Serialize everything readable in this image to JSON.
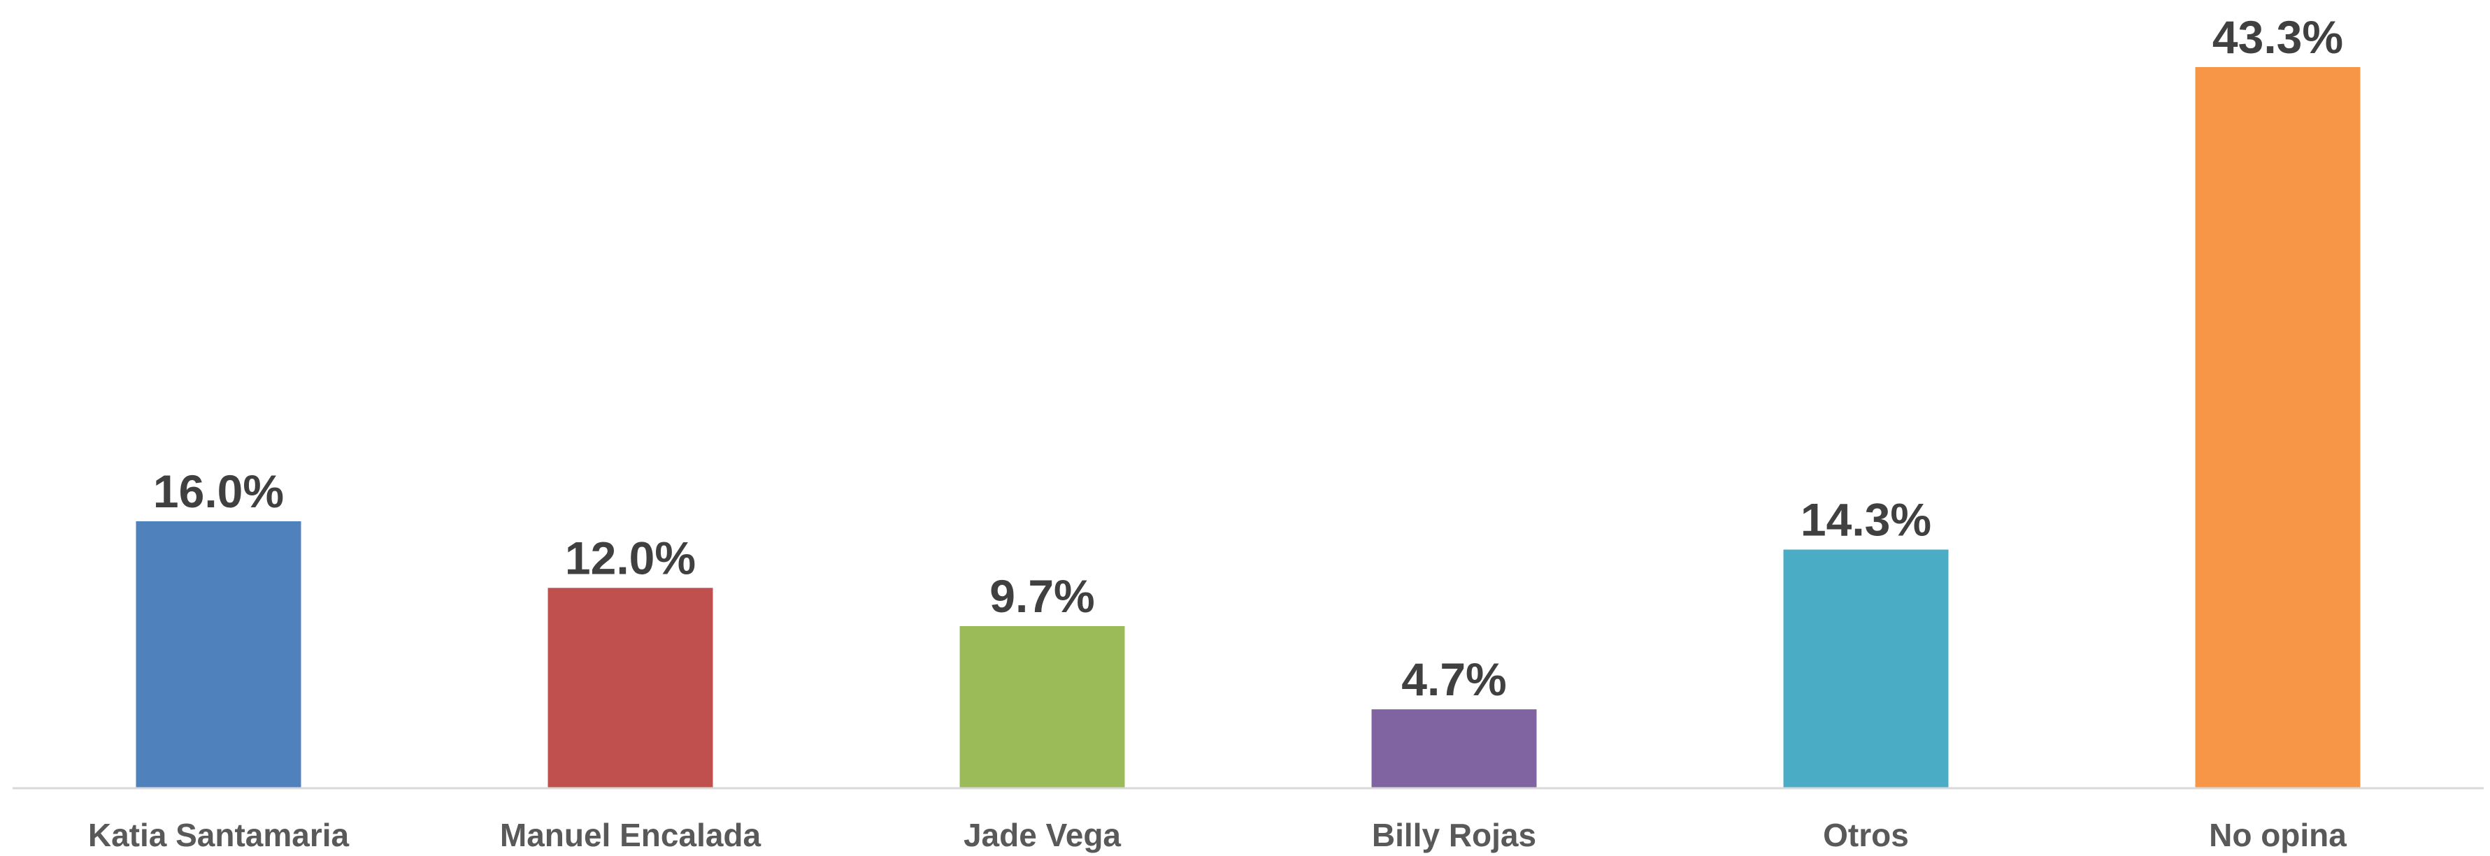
{
  "chart_data": {
    "type": "bar",
    "title": "",
    "xlabel": "",
    "ylabel": "",
    "categories": [
      "Katia Santamaria",
      "Manuel Encalada",
      "Jade Vega",
      "Billy Rojas",
      "Otros",
      "No opina"
    ],
    "values": [
      16.0,
      12.0,
      9.7,
      4.7,
      14.3,
      43.3
    ],
    "value_labels": [
      "16.0%",
      "12.0%",
      "9.7%",
      "4.7%",
      "14.3%",
      "43.3%"
    ],
    "colors": [
      "#4F81BD",
      "#C0504D",
      "#9BBB59",
      "#8064A2",
      "#4BACC6",
      "#F79646"
    ],
    "ylim": [
      0,
      43.3
    ],
    "grid": false,
    "legend": "none",
    "axis_color": "#D9D9D9"
  }
}
